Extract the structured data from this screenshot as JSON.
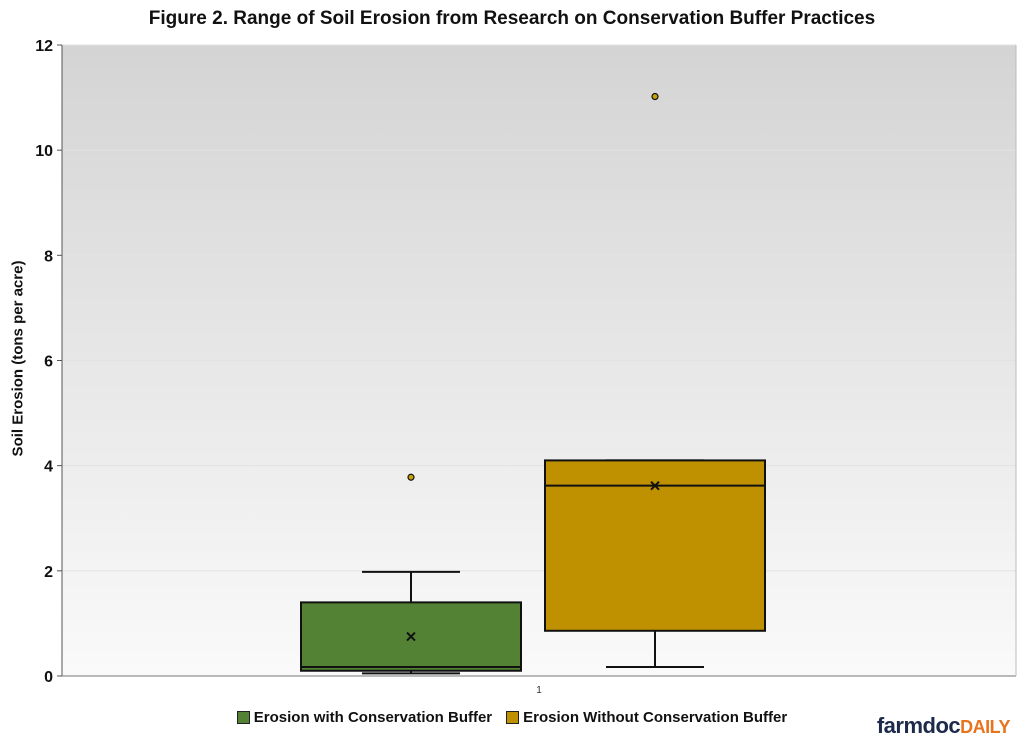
{
  "chart_data": {
    "type": "box",
    "title": "Figure 2. Range of Soil Erosion from Research on Conservation Buffer Practices",
    "xlabel": "",
    "ylabel": "Soil Erosion (tons per acre)",
    "ylim": [
      0,
      12
    ],
    "yticks": [
      0,
      2,
      4,
      6,
      8,
      10,
      12
    ],
    "categories": [
      "1"
    ],
    "grid": true,
    "legend_position": "bottom",
    "series": [
      {
        "name": "Erosion with Conservation Buffer",
        "color": "#548235",
        "min": 0.05,
        "q1": 0.1,
        "median": 0.17,
        "q3": 1.4,
        "max": 1.98,
        "mean": 0.75,
        "outliers": [
          3.78
        ]
      },
      {
        "name": "Erosion Without Conservation Buffer",
        "color": "#bf9000",
        "min": 0.17,
        "q1": 0.86,
        "median": 3.62,
        "q3": 4.1,
        "max": 4.1,
        "mean": 3.62,
        "outliers": [
          11.02
        ]
      }
    ]
  },
  "logo": {
    "part1": "farmdoc",
    "part2": "DAILY"
  }
}
